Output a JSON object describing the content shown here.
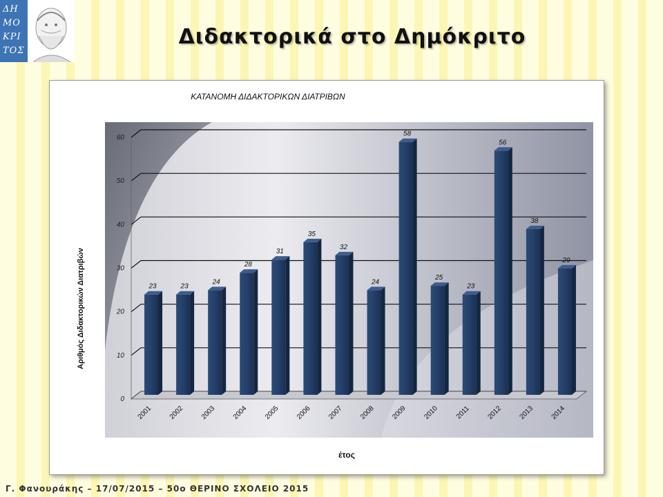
{
  "slide": {
    "title": "Διδακτορικά στο Δημόκριτο",
    "footer": "Γ. Φανουράκης – 17/07/2015 – 50ο ΘΕΡΙΝΟ ΣΧΟΛΕΙΟ 2015"
  },
  "logo": {
    "text": "ΔΗΜΟΚΡΙΤΟΣ",
    "lines": [
      "ΔΗ",
      "ΜΟ",
      "ΚΡΙ",
      "ΤΟΣ"
    ],
    "color": "#3d74b4"
  },
  "chart_data": {
    "type": "bar",
    "title": "ΚΑΤΑΝΟΜΗ ΔΙΔΑΚΤΟΡΙΚΩΝ ΔΙΑΤΡΙΒΩΝ",
    "xlabel": "έτος",
    "ylabel": "Αριθμός Διδακτορικών Διατριβών",
    "categories": [
      "2001",
      "2002",
      "2003",
      "2004",
      "2005",
      "2006",
      "2007",
      "2008",
      "2009",
      "2010",
      "2011",
      "2012",
      "2013",
      "2014"
    ],
    "values": [
      23,
      23,
      24,
      28,
      31,
      35,
      32,
      24,
      58,
      25,
      23,
      56,
      38,
      29
    ],
    "ylim": [
      0,
      60
    ],
    "yticks": [
      0,
      10,
      20,
      30,
      40,
      50,
      60
    ],
    "grid": true,
    "legend": "none",
    "bar_color": "#213a5e"
  }
}
